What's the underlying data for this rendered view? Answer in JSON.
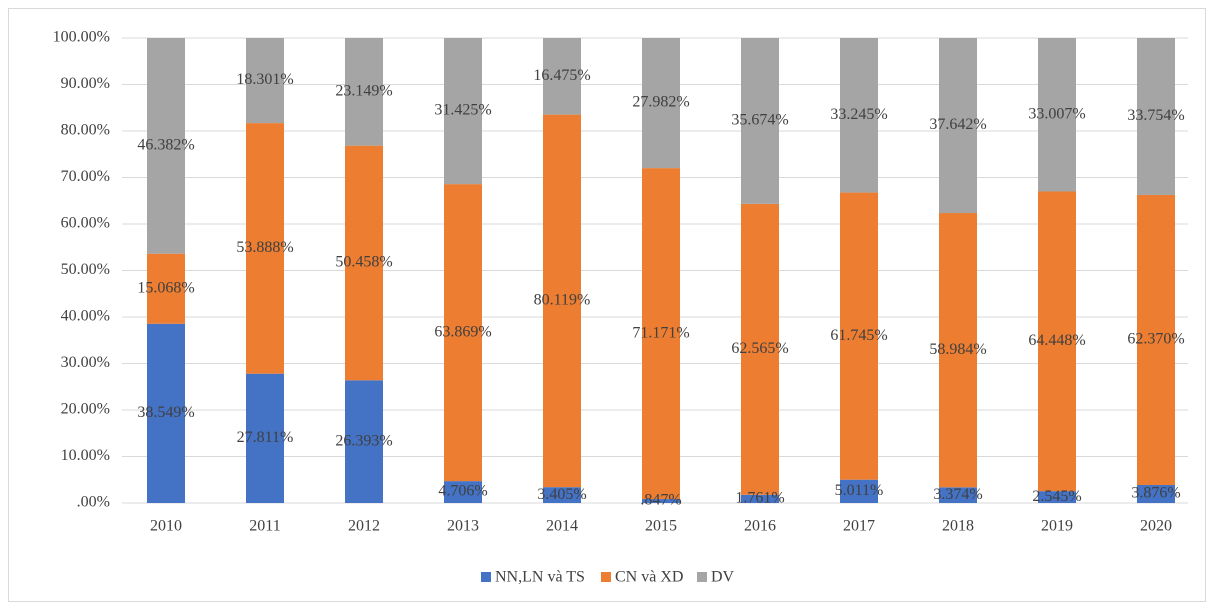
{
  "chart_data": {
    "type": "stacked_bar",
    "categories": [
      "2010",
      "2011",
      "2012",
      "2013",
      "2014",
      "2015",
      "2016",
      "2017",
      "2018",
      "2019",
      "2020"
    ],
    "series": [
      {
        "name": "NN,LN và TS",
        "color": "#4472c4",
        "values": [
          38.549,
          27.811,
          26.393,
          4.706,
          3.405,
          0.847,
          1.761,
          5.011,
          3.374,
          2.545,
          3.876
        ],
        "value_labels": [
          "38.549%",
          "27.811%",
          "26.393%",
          "4.706%",
          "3.405%",
          ".847%",
          "1.761%",
          "5.011%",
          "3.374%",
          "2.545%",
          "3.876%"
        ]
      },
      {
        "name": "CN và XD",
        "color": "#ed7d31",
        "values": [
          15.068,
          53.888,
          50.458,
          63.869,
          80.119,
          71.171,
          62.565,
          61.745,
          58.984,
          64.448,
          62.37
        ],
        "value_labels": [
          "15.068%",
          "53.888%",
          "50.458%",
          "63.869%",
          "80.119%",
          "71.171%",
          "62.565%",
          "61.745%",
          "58.984%",
          "64.448%",
          "62.370%"
        ]
      },
      {
        "name": "DV",
        "color": "#a5a5a5",
        "values": [
          46.382,
          18.301,
          23.149,
          31.425,
          16.475,
          27.982,
          35.674,
          33.245,
          37.642,
          33.007,
          33.754
        ],
        "value_labels": [
          "46.382%",
          "18.301%",
          "23.149%",
          "31.425%",
          "16.475%",
          "27.982%",
          "35.674%",
          "33.245%",
          "37.642%",
          "33.007%",
          "33.754%"
        ]
      }
    ],
    "ylim": [
      0,
      100
    ],
    "yticks": [
      {
        "value": 0,
        "label": ".00%"
      },
      {
        "value": 10,
        "label": "10.00%"
      },
      {
        "value": 20,
        "label": "20.00%"
      },
      {
        "value": 30,
        "label": "30.00%"
      },
      {
        "value": 40,
        "label": "40.00%"
      },
      {
        "value": 50,
        "label": "50.00%"
      },
      {
        "value": 60,
        "label": "60.00%"
      },
      {
        "value": 70,
        "label": "70.00%"
      },
      {
        "value": 80,
        "label": "80.00%"
      },
      {
        "value": 90,
        "label": "90.00%"
      },
      {
        "value": 100,
        "label": "100.00%"
      }
    ],
    "grid": true,
    "legend": "bottom"
  }
}
